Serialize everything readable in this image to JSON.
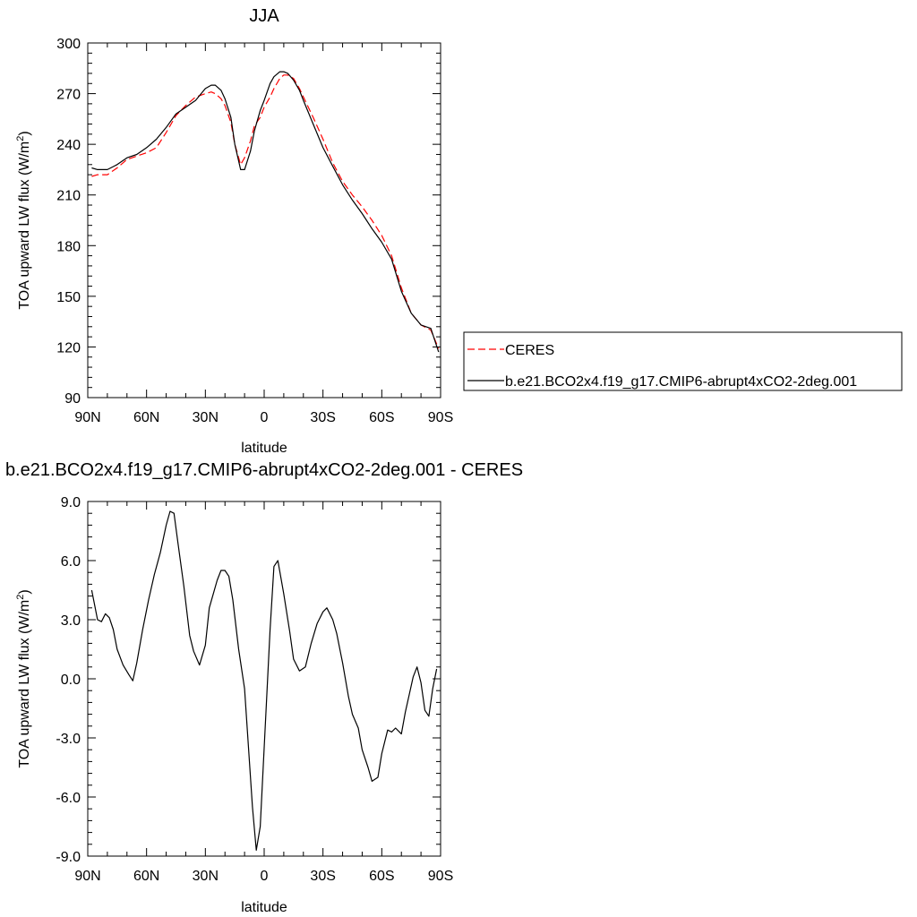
{
  "chart_data": [
    {
      "type": "line",
      "title": "JJA",
      "xlabel": "latitude",
      "ylabel_main": "TOA upward LW flux (W/m",
      "ylabel_sup": "2",
      "ylabel_close": ")",
      "xlim": [
        90,
        -90
      ],
      "ylim": [
        90,
        300
      ],
      "xticks": [
        90,
        60,
        30,
        0,
        -30,
        -60,
        -90
      ],
      "xtick_labels": [
        "90N",
        "60N",
        "30N",
        "0",
        "30S",
        "60S",
        "90S"
      ],
      "yticks": [
        90,
        120,
        150,
        180,
        210,
        240,
        270,
        300
      ],
      "ytick_labels": [
        "90",
        "120",
        "150",
        "180",
        "210",
        "240",
        "270",
        "300"
      ],
      "legend_position": "right",
      "series": [
        {
          "name": "CERES",
          "color": "#ff0000",
          "dash": "dashed",
          "x": [
            88,
            85,
            80,
            75,
            70,
            65,
            60,
            55,
            50,
            45,
            40,
            35,
            30,
            27,
            25,
            22,
            20,
            17,
            15,
            12,
            10,
            7,
            5,
            2,
            0,
            -3,
            -5,
            -8,
            -10,
            -12,
            -15,
            -18,
            -20,
            -25,
            -30,
            -35,
            -40,
            -45,
            -50,
            -55,
            -60,
            -65,
            -70,
            -75,
            -80,
            -85,
            -89
          ],
          "y": [
            221,
            222,
            222,
            226,
            231,
            233,
            235,
            238,
            247,
            257,
            263,
            268,
            270,
            271,
            270,
            267,
            263,
            253,
            240,
            228,
            232,
            242,
            251,
            256,
            262,
            268,
            273,
            279,
            281,
            281,
            279,
            273,
            268,
            256,
            243,
            229,
            218,
            210,
            203,
            195,
            186,
            174,
            155,
            140,
            133,
            130,
            119
          ]
        },
        {
          "name": "b.e21.BCO2x4.f19_g17.CMIP6-abrupt4xCO2-2deg.001",
          "color": "#000000",
          "dash": "solid",
          "x": [
            88,
            85,
            80,
            75,
            70,
            65,
            60,
            55,
            50,
            45,
            40,
            35,
            30,
            27,
            25,
            22,
            20,
            17,
            15,
            12,
            10,
            7,
            5,
            2,
            0,
            -3,
            -5,
            -8,
            -10,
            -12,
            -15,
            -18,
            -20,
            -25,
            -30,
            -35,
            -40,
            -45,
            -50,
            -55,
            -60,
            -65,
            -70,
            -75,
            -80,
            -85,
            -89
          ],
          "y": [
            226,
            225,
            225,
            228,
            232,
            234,
            238,
            243,
            250,
            258,
            262,
            266,
            273,
            275,
            275,
            272,
            267,
            256,
            240,
            225,
            225,
            236,
            248,
            260,
            266,
            276,
            280,
            283,
            283,
            282,
            278,
            272,
            266,
            252,
            238,
            227,
            216,
            207,
            199,
            190,
            182,
            172,
            153,
            140,
            133,
            131,
            117
          ]
        }
      ]
    },
    {
      "type": "line",
      "title": "b.e21.BCO2x4.f19_g17.CMIP6-abrupt4xCO2-2deg.001 - CERES",
      "xlabel": "latitude",
      "ylabel_main": "TOA upward LW flux (W/m",
      "ylabel_sup": "2",
      "ylabel_close": ")",
      "xlim": [
        90,
        -90
      ],
      "ylim": [
        -9,
        9
      ],
      "xticks": [
        90,
        60,
        30,
        0,
        -30,
        -60,
        -90
      ],
      "xtick_labels": [
        "90N",
        "60N",
        "30N",
        "0",
        "30S",
        "60S",
        "90S"
      ],
      "yticks": [
        -9,
        -6,
        -3,
        0,
        3,
        6,
        9
      ],
      "ytick_labels": [
        "-9.0",
        "-6.0",
        "-3.0",
        "0.0",
        "3.0",
        "6.0",
        "9.0"
      ],
      "series": [
        {
          "color": "#000000",
          "dash": "solid",
          "x": [
            88,
            85,
            83,
            81,
            79,
            77,
            75,
            72,
            69,
            67,
            65,
            62,
            59,
            56,
            53,
            50,
            48,
            46,
            44,
            41,
            38,
            36,
            33,
            30,
            28,
            26,
            24,
            22,
            20,
            18,
            16,
            13,
            10,
            8,
            6,
            4,
            2,
            0,
            -3,
            -5,
            -7,
            -10,
            -13,
            -15,
            -18,
            -21,
            -24,
            -27,
            -30,
            -32,
            -35,
            -37,
            -40,
            -43,
            -45,
            -48,
            -50,
            -53,
            -55,
            -58,
            -60,
            -63,
            -65,
            -67,
            -70,
            -72,
            -74,
            -76,
            -78,
            -80,
            -82,
            -84,
            -86,
            -88
          ],
          "y": [
            4.5,
            3.0,
            2.9,
            3.3,
            3.1,
            2.5,
            1.5,
            0.7,
            0.2,
            -0.1,
            0.8,
            2.5,
            4.0,
            5.3,
            6.4,
            7.8,
            8.5,
            8.4,
            6.9,
            4.7,
            2.2,
            1.4,
            0.7,
            1.7,
            3.6,
            4.3,
            5.0,
            5.5,
            5.5,
            5.2,
            4.0,
            1.5,
            -0.5,
            -3.5,
            -6.5,
            -8.7,
            -7.5,
            -3.5,
            2.5,
            5.7,
            6.0,
            4.3,
            2.4,
            1.0,
            0.4,
            0.6,
            1.8,
            2.8,
            3.4,
            3.6,
            3.0,
            2.3,
            0.8,
            -0.9,
            -1.8,
            -2.5,
            -3.6,
            -4.5,
            -5.2,
            -5.0,
            -3.8,
            -2.6,
            -2.7,
            -2.5,
            -2.8,
            -1.7,
            -0.8,
            0.1,
            0.6,
            -0.2,
            -1.6,
            -1.9,
            -0.5,
            0.5
          ]
        }
      ]
    }
  ]
}
